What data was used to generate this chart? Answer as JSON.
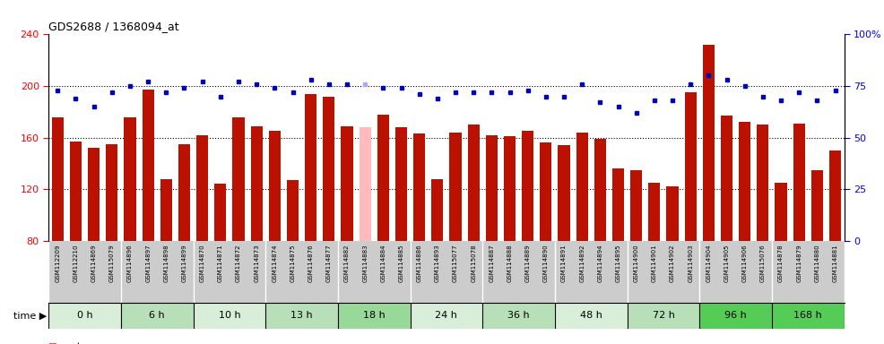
{
  "title": "GDS2688 / 1368094_at",
  "samples": [
    "GSM112209",
    "GSM112210",
    "GSM114869",
    "GSM115079",
    "GSM114896",
    "GSM114897",
    "GSM114898",
    "GSM114899",
    "GSM114870",
    "GSM114871",
    "GSM114872",
    "GSM114873",
    "GSM114874",
    "GSM114875",
    "GSM114876",
    "GSM114877",
    "GSM114882",
    "GSM114883",
    "GSM114884",
    "GSM114885",
    "GSM114886",
    "GSM114893",
    "GSM115077",
    "GSM115078",
    "GSM114887",
    "GSM114888",
    "GSM114889",
    "GSM114890",
    "GSM114891",
    "GSM114892",
    "GSM114894",
    "GSM114895",
    "GSM114900",
    "GSM114901",
    "GSM114902",
    "GSM114903",
    "GSM114904",
    "GSM114905",
    "GSM114906",
    "GSM115076",
    "GSM114878",
    "GSM114879",
    "GSM114880",
    "GSM114881"
  ],
  "values": [
    176,
    157,
    152,
    155,
    176,
    197,
    128,
    155,
    162,
    124,
    176,
    169,
    165,
    127,
    194,
    192,
    169,
    168,
    178,
    168,
    163,
    128,
    164,
    170,
    162,
    161,
    165,
    156,
    154,
    164,
    159,
    136,
    135,
    125,
    122,
    195,
    232,
    177,
    172,
    170,
    125,
    171,
    135,
    150
  ],
  "ranks": [
    73,
    69,
    65,
    72,
    75,
    77,
    72,
    74,
    77,
    70,
    77,
    76,
    74,
    72,
    78,
    76,
    76,
    76,
    74,
    74,
    71,
    69,
    72,
    72,
    72,
    72,
    73,
    70,
    70,
    76,
    67,
    65,
    62,
    68,
    68,
    76,
    80,
    78,
    75,
    70,
    68,
    72,
    68,
    73
  ],
  "absent_indices": [
    17
  ],
  "time_groups": [
    {
      "label": "0 h",
      "start": 0,
      "end": 4,
      "color": "#d8eed8"
    },
    {
      "label": "6 h",
      "start": 4,
      "end": 8,
      "color": "#b8e0b8"
    },
    {
      "label": "10 h",
      "start": 8,
      "end": 12,
      "color": "#d8eed8"
    },
    {
      "label": "13 h",
      "start": 12,
      "end": 16,
      "color": "#b8e0b8"
    },
    {
      "label": "18 h",
      "start": 16,
      "end": 20,
      "color": "#98d898"
    },
    {
      "label": "24 h",
      "start": 20,
      "end": 24,
      "color": "#d8eed8"
    },
    {
      "label": "36 h",
      "start": 24,
      "end": 28,
      "color": "#b8e0b8"
    },
    {
      "label": "48 h",
      "start": 28,
      "end": 32,
      "color": "#d8eed8"
    },
    {
      "label": "72 h",
      "start": 32,
      "end": 36,
      "color": "#b8e0b8"
    },
    {
      "label": "96 h",
      "start": 36,
      "end": 40,
      "color": "#55cc55"
    },
    {
      "label": "168 h",
      "start": 40,
      "end": 44,
      "color": "#55cc55"
    }
  ],
  "ylim": [
    80,
    240
  ],
  "yticks_left": [
    80,
    120,
    160,
    200,
    240
  ],
  "yticks_right": [
    0,
    25,
    50,
    75,
    100
  ],
  "bar_color": "#bb1100",
  "absent_bar_color": "#ffbbbb",
  "rank_color": "#0000bb",
  "absent_rank_color": "#aaaaff",
  "plot_bg": "#ffffff",
  "xlabel_bg": "#cccccc"
}
